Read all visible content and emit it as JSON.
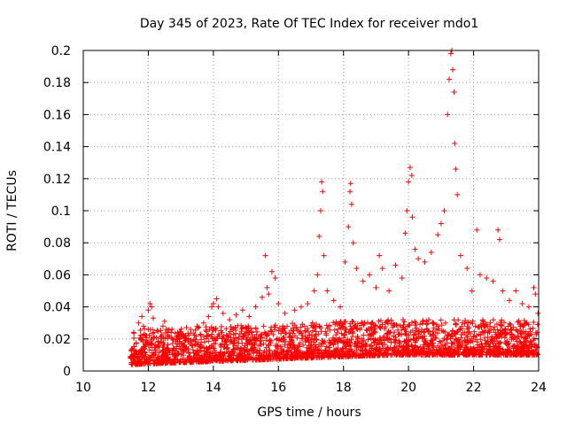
{
  "chart_data": {
    "type": "scatter",
    "title": "Day 345 of 2023, Rate Of TEC Index for receiver mdo1",
    "xlabel": "GPS time / hours",
    "ylabel": "ROTI / TECUs",
    "xlim": [
      10,
      24
    ],
    "ylim": [
      0,
      0.2
    ],
    "xticks": [
      "10",
      "12",
      "14",
      "16",
      "18",
      "20",
      "22",
      "24"
    ],
    "yticks": [
      "0",
      "0.02",
      "0.04",
      "0.06",
      "0.08",
      "0.1",
      "0.12",
      "0.14",
      "0.16",
      "0.18",
      "0.2"
    ],
    "grid": true,
    "marker": "+",
    "series_color": "#ff0000",
    "series": [
      {
        "name": "ROTI",
        "points": [
          [
            11.45,
            0.009
          ],
          [
            11.55,
            0.024
          ],
          [
            11.7,
            0.03
          ],
          [
            11.8,
            0.034
          ],
          [
            11.85,
            0.028
          ],
          [
            11.95,
            0.022
          ],
          [
            12.0,
            0.038
          ],
          [
            12.05,
            0.042
          ],
          [
            12.1,
            0.04
          ],
          [
            12.15,
            0.033
          ],
          [
            12.3,
            0.018
          ],
          [
            12.45,
            0.028
          ],
          [
            12.5,
            0.031
          ],
          [
            12.55,
            0.026
          ],
          [
            12.75,
            0.02
          ],
          [
            12.9,
            0.024
          ],
          [
            13.1,
            0.022
          ],
          [
            13.3,
            0.026
          ],
          [
            13.5,
            0.028
          ],
          [
            13.7,
            0.03
          ],
          [
            13.85,
            0.034
          ],
          [
            13.95,
            0.04
          ],
          [
            14.0,
            0.042
          ],
          [
            14.1,
            0.045
          ],
          [
            14.15,
            0.04
          ],
          [
            14.3,
            0.036
          ],
          [
            14.5,
            0.032
          ],
          [
            14.7,
            0.035
          ],
          [
            14.9,
            0.038
          ],
          [
            15.1,
            0.034
          ],
          [
            15.3,
            0.04
          ],
          [
            15.5,
            0.046
          ],
          [
            15.6,
            0.072
          ],
          [
            15.65,
            0.052
          ],
          [
            15.7,
            0.048
          ],
          [
            15.8,
            0.062
          ],
          [
            15.9,
            0.058
          ],
          [
            16.0,
            0.042
          ],
          [
            16.2,
            0.036
          ],
          [
            16.5,
            0.038
          ],
          [
            16.7,
            0.04
          ],
          [
            16.9,
            0.042
          ],
          [
            17.1,
            0.05
          ],
          [
            17.2,
            0.06
          ],
          [
            17.25,
            0.084
          ],
          [
            17.3,
            0.1
          ],
          [
            17.33,
            0.118
          ],
          [
            17.36,
            0.112
          ],
          [
            17.4,
            0.072
          ],
          [
            17.5,
            0.05
          ],
          [
            17.7,
            0.044
          ],
          [
            17.9,
            0.04
          ],
          [
            18.05,
            0.068
          ],
          [
            18.15,
            0.09
          ],
          [
            18.2,
            0.112
          ],
          [
            18.22,
            0.117
          ],
          [
            18.25,
            0.104
          ],
          [
            18.3,
            0.08
          ],
          [
            18.4,
            0.064
          ],
          [
            18.6,
            0.056
          ],
          [
            18.8,
            0.06
          ],
          [
            19.0,
            0.052
          ],
          [
            19.1,
            0.072
          ],
          [
            19.2,
            0.064
          ],
          [
            19.4,
            0.05
          ],
          [
            19.6,
            0.066
          ],
          [
            19.8,
            0.058
          ],
          [
            19.9,
            0.086
          ],
          [
            19.95,
            0.1
          ],
          [
            20.0,
            0.118
          ],
          [
            20.05,
            0.127
          ],
          [
            20.1,
            0.122
          ],
          [
            20.12,
            0.096
          ],
          [
            20.2,
            0.076
          ],
          [
            20.3,
            0.07
          ],
          [
            20.5,
            0.068
          ],
          [
            20.7,
            0.074
          ],
          [
            20.9,
            0.085
          ],
          [
            21.0,
            0.092
          ],
          [
            21.1,
            0.1
          ],
          [
            21.2,
            0.16
          ],
          [
            21.25,
            0.182
          ],
          [
            21.3,
            0.198
          ],
          [
            21.33,
            0.2
          ],
          [
            21.36,
            0.188
          ],
          [
            21.4,
            0.174
          ],
          [
            21.42,
            0.142
          ],
          [
            21.45,
            0.126
          ],
          [
            21.5,
            0.11
          ],
          [
            21.6,
            0.072
          ],
          [
            21.8,
            0.064
          ],
          [
            21.95,
            0.05
          ],
          [
            22.1,
            0.088
          ],
          [
            22.2,
            0.06
          ],
          [
            22.4,
            0.058
          ],
          [
            22.6,
            0.056
          ],
          [
            22.75,
            0.088
          ],
          [
            22.8,
            0.082
          ],
          [
            22.9,
            0.05
          ],
          [
            23.1,
            0.044
          ],
          [
            23.3,
            0.05
          ],
          [
            23.5,
            0.042
          ],
          [
            23.7,
            0.04
          ],
          [
            23.85,
            0.052
          ],
          [
            23.9,
            0.048
          ],
          [
            23.98,
            0.036
          ]
        ]
      }
    ]
  }
}
